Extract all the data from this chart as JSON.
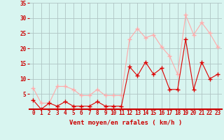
{
  "x": [
    0,
    1,
    2,
    3,
    4,
    5,
    6,
    7,
    8,
    9,
    10,
    11,
    12,
    13,
    14,
    15,
    16,
    17,
    18,
    19,
    20,
    21,
    22,
    23
  ],
  "wind_avg": [
    3,
    0,
    2,
    1,
    2.5,
    1,
    1,
    1,
    2.5,
    1,
    1,
    1,
    14,
    11,
    15.5,
    11.5,
    13.5,
    6.5,
    6.5,
    23,
    6.5,
    15.5,
    10,
    11.5
  ],
  "wind_gust": [
    7,
    2,
    2,
    7.5,
    7.5,
    6.5,
    4.5,
    4.5,
    6.5,
    4.5,
    4.5,
    4.5,
    23,
    26.5,
    23.5,
    24.5,
    20.5,
    17.5,
    11.5,
    31,
    24.5,
    28.5,
    25,
    20.5
  ],
  "avg_color": "#dd0000",
  "gust_color": "#ffaaaa",
  "bg_color": "#d8f5f0",
  "grid_color": "#b0c4c4",
  "axis_color": "#cc0000",
  "xlabel": "Vent moyen/en rafales ( km/h )",
  "ylim": [
    0,
    35
  ],
  "yticks": [
    5,
    10,
    15,
    20,
    25,
    30,
    35
  ],
  "xticks": [
    0,
    1,
    2,
    3,
    4,
    5,
    6,
    7,
    8,
    9,
    10,
    11,
    12,
    13,
    14,
    15,
    16,
    17,
    18,
    19,
    20,
    21,
    22,
    23
  ],
  "marker": "+",
  "markersize": 4,
  "linewidth": 0.8
}
